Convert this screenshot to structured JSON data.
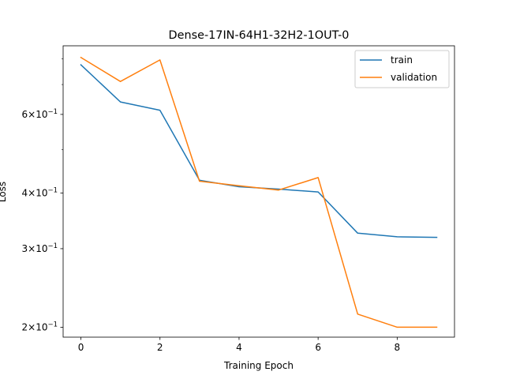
{
  "chart_data": {
    "type": "line",
    "title": "Dense-17IN-64H1-32H2-1OUT-0",
    "xlabel": "Training Epoch",
    "ylabel": "Loss",
    "yscale": "log",
    "xlim": [
      -0.45,
      9.45
    ],
    "ylim": [
      0.19,
      0.855
    ],
    "x": [
      0,
      1,
      2,
      3,
      4,
      5,
      6,
      7,
      8,
      9
    ],
    "xticks": [
      0,
      2,
      4,
      6,
      8
    ],
    "xtick_labels": [
      "0",
      "2",
      "4",
      "6",
      "8"
    ],
    "yticks": [
      0.2,
      0.3,
      0.4,
      0.6
    ],
    "ytick_labels": [
      {
        "base": "2×10",
        "exp": "−1"
      },
      {
        "base": "3×10",
        "exp": "−1"
      },
      {
        "base": "4×10",
        "exp": "−1"
      },
      {
        "base": "6×10",
        "exp": "−1"
      }
    ],
    "minor_yticks": [
      0.5,
      0.7,
      0.8
    ],
    "grid": false,
    "legend_position": "top-right",
    "series": [
      {
        "name": "train",
        "color": "#1f77b4",
        "values": [
          0.775,
          0.64,
          0.613,
          0.427,
          0.413,
          0.408,
          0.402,
          0.325,
          0.319,
          0.318
        ]
      },
      {
        "name": "validation",
        "color": "#ff7f0e",
        "values": [
          0.805,
          0.711,
          0.795,
          0.425,
          0.415,
          0.406,
          0.433,
          0.214,
          0.2,
          0.2
        ]
      }
    ]
  }
}
